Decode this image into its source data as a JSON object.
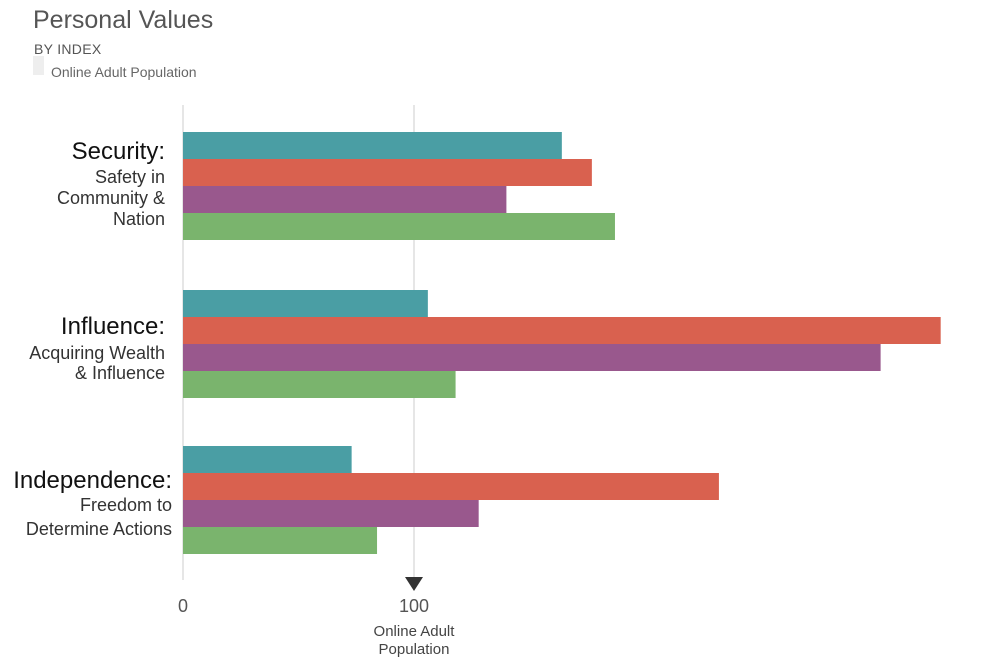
{
  "header": {
    "title": "Personal Values",
    "subtitle": "BY INDEX",
    "legend_label": "Online Adult Population"
  },
  "colors": {
    "teal": "#4a9ea4",
    "coral": "#d9614f",
    "purple": "#99588d",
    "green": "#7ab46d",
    "gridline": "#e6e6e6",
    "legend_swatch": "#eeeeee",
    "marker": "#333333"
  },
  "chart_data": {
    "type": "bar",
    "orientation": "horizontal",
    "title": "Personal Values",
    "subtitle": "BY INDEX",
    "categories": [
      {
        "heading": "Security:",
        "description": [
          "Safety in",
          "Community &",
          "Nation"
        ]
      },
      {
        "heading": "Influence:",
        "description": [
          "Acquiring Wealth",
          "& Influence"
        ]
      },
      {
        "heading": "Independence:",
        "description": [
          "Freedom to",
          "Determine Actions"
        ]
      }
    ],
    "series": [
      {
        "color": "#4a9ea4",
        "values": [
          164,
          106,
          73
        ]
      },
      {
        "color": "#d9614f",
        "values": [
          177,
          328,
          232
        ]
      },
      {
        "color": "#99588d",
        "values": [
          140,
          302,
          128
        ]
      },
      {
        "color": "#7ab46d",
        "values": [
          187,
          118,
          84
        ]
      }
    ],
    "xlim": [
      0,
      345
    ],
    "x_ticks": [
      {
        "value": 0,
        "label": "0"
      },
      {
        "value": 100,
        "label": "100"
      }
    ],
    "reference_line": {
      "value": 100,
      "label": [
        "Online Adult",
        "Population"
      ]
    },
    "grid": true,
    "legend": [
      {
        "label": "Online Adult Population",
        "color": "#eeeeee"
      }
    ]
  }
}
